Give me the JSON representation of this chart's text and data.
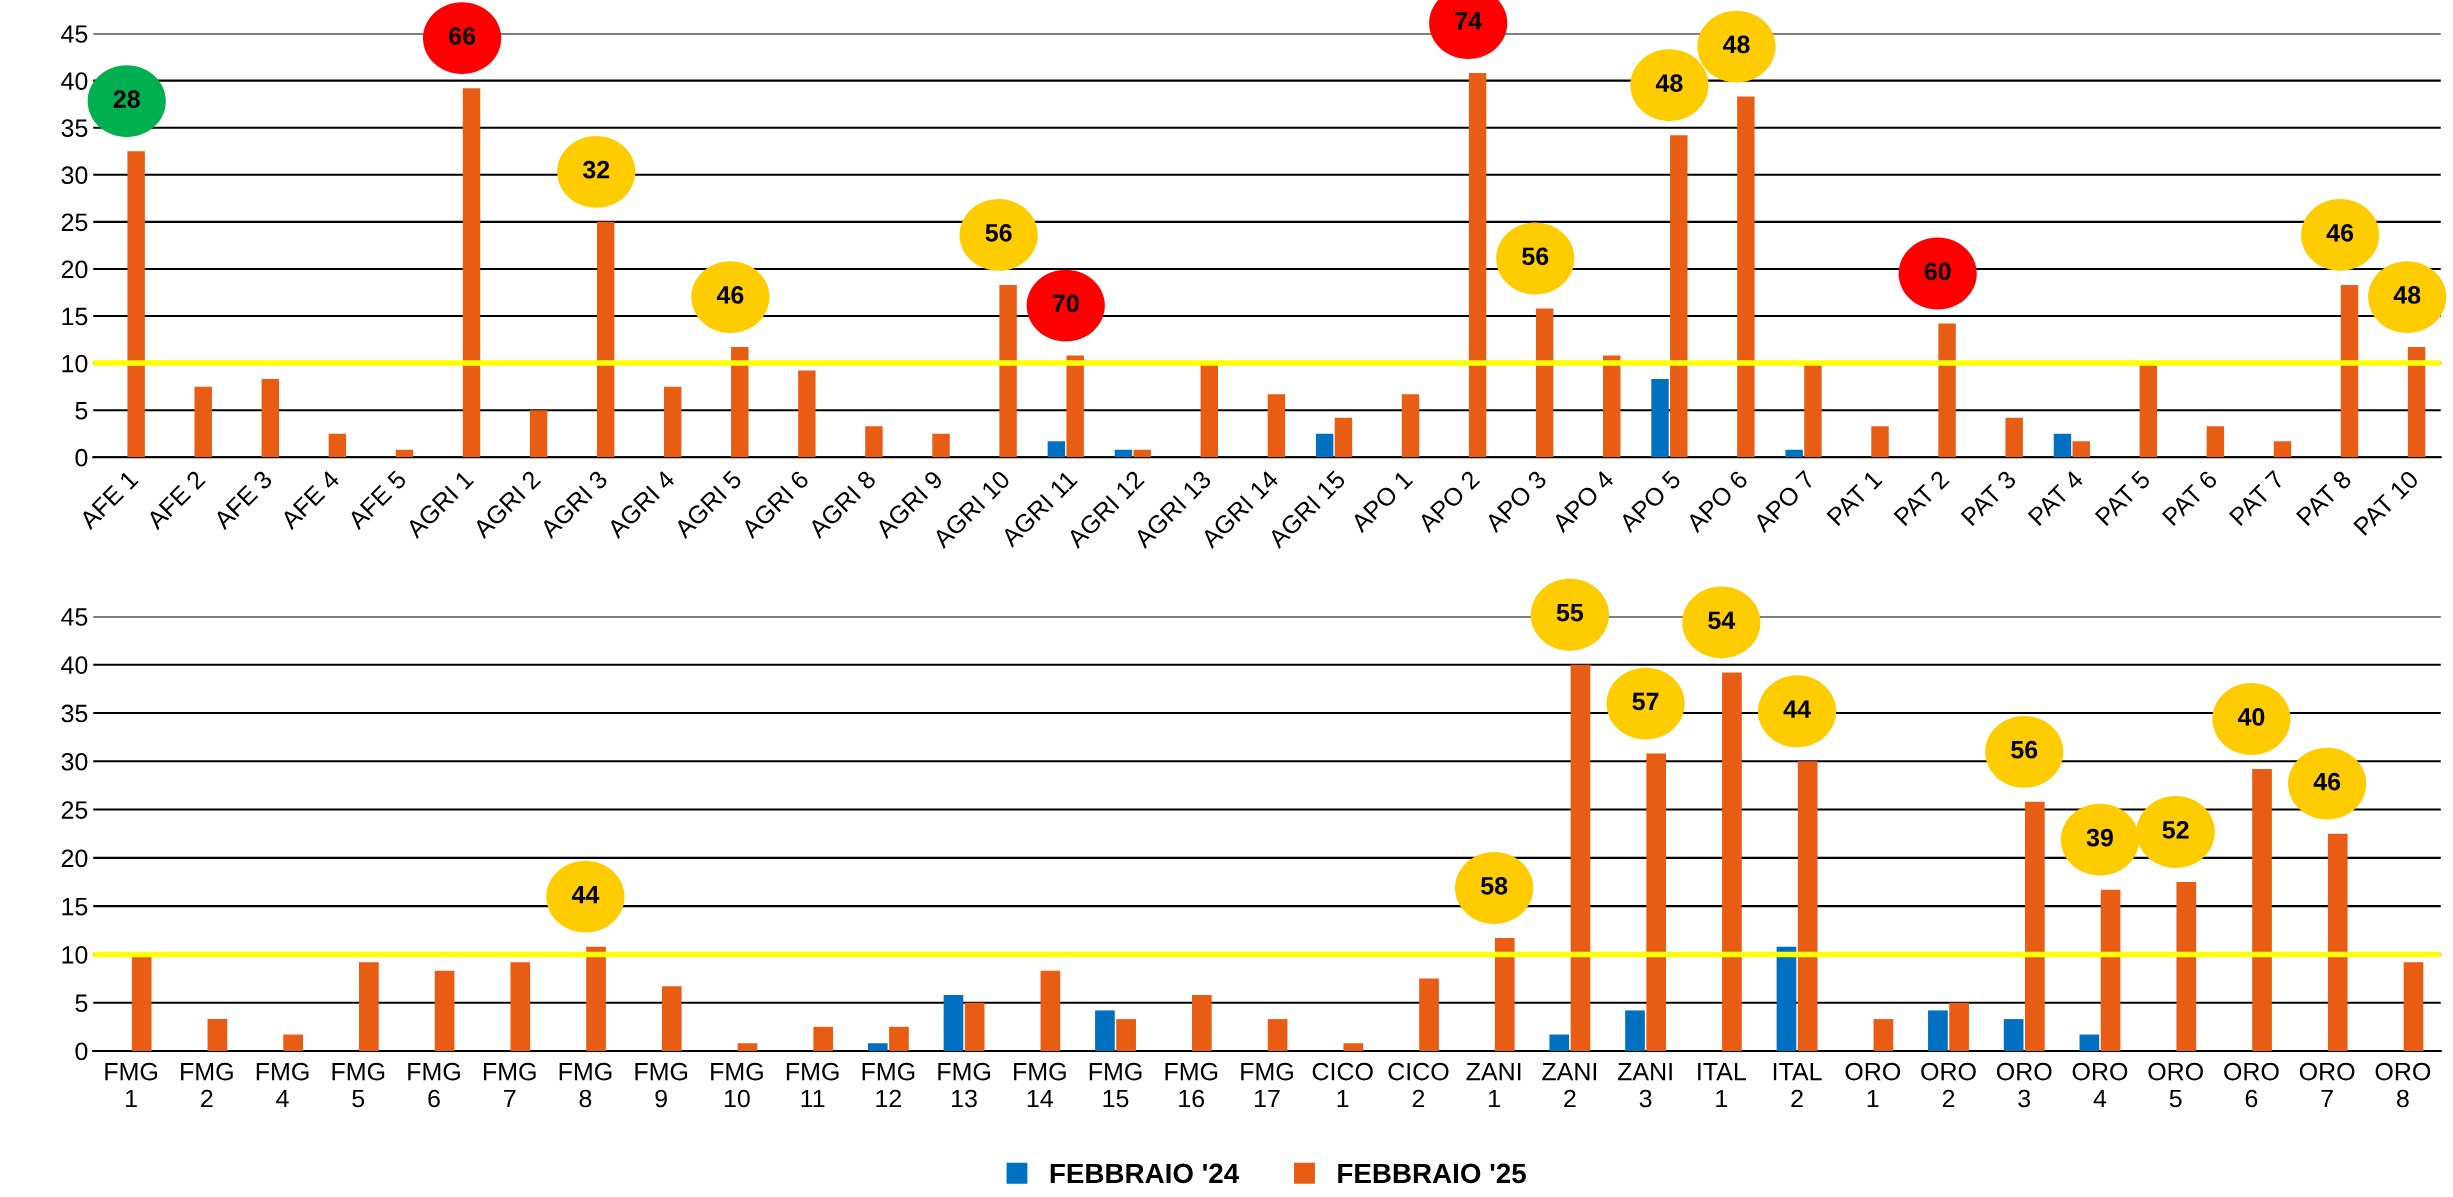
{
  "chart_data": [
    {
      "type": "bar",
      "categories": [
        "AFE 1",
        "AFE 2",
        "AFE 3",
        "AFE 4",
        "AFE 5",
        "AGRI 1",
        "AGRI 2",
        "AGRI 3",
        "AGRI 4",
        "AGRI 5",
        "AGRI 6",
        "AGRI 8",
        "AGRI 9",
        "AGRI 10",
        "AGRI 11",
        "AGRI 12",
        "AGRI 13",
        "AGRI 14",
        "AGRI 15",
        "APO 1",
        "APO 2",
        "APO 3",
        "APO 4",
        "APO 5",
        "APO 6",
        "APO 7",
        "PAT 1",
        "PAT 2",
        "PAT 3",
        "PAT 4",
        "PAT 5",
        "PAT 6",
        "PAT 7",
        "PAT 8",
        "PAT 10"
      ],
      "series": [
        {
          "color": "#0070c0",
          "values": [
            null,
            null,
            null,
            null,
            null,
            null,
            null,
            null,
            null,
            null,
            null,
            null,
            null,
            null,
            1.7,
            0.8,
            null,
            null,
            2.5,
            null,
            null,
            null,
            null,
            8.3,
            null,
            0.8,
            null,
            null,
            null,
            2.5,
            null,
            null,
            null,
            null,
            null
          ]
        },
        {
          "color": "#e85c14",
          "values": [
            32.5,
            7.5,
            8.3,
            2.5,
            0.8,
            39.2,
            5.0,
            25.0,
            7.5,
            11.7,
            9.2,
            3.3,
            2.5,
            18.3,
            10.8,
            0.8,
            10.0,
            6.7,
            4.2,
            6.7,
            40.8,
            15.8,
            10.8,
            34.2,
            38.3,
            10.0,
            3.3,
            14.2,
            4.2,
            1.7,
            10.0,
            3.3,
            1.7,
            18.3,
            11.7
          ]
        }
      ],
      "ylim": [
        0,
        45
      ],
      "yticks": [
        0,
        5,
        10,
        15,
        20,
        25,
        30,
        35,
        40,
        45
      ],
      "grid": "y",
      "ref_lines": [
        {
          "axis": "y",
          "value": 10,
          "color": "#ffff00"
        }
      ],
      "annotations": [
        {
          "text": "28",
          "x": "AFE 1",
          "y": 32.5
        },
        {
          "text": "66",
          "x": "AGRI 1",
          "y": 39.2
        },
        {
          "text": "32",
          "x": "AGRI 3",
          "y": 25.0
        },
        {
          "text": "46",
          "x": "AGRI 5",
          "y": 11.7
        },
        {
          "text": "56",
          "x": "AGRI 10",
          "y": 18.3
        },
        {
          "text": "70",
          "x": "AGRI 11",
          "y": 10.8
        },
        {
          "text": "74",
          "x": "APO 2",
          "y": 40.8
        },
        {
          "text": "56",
          "x": "APO 3",
          "y": 15.8
        },
        {
          "text": "48",
          "x": "APO 5",
          "y": 34.2
        },
        {
          "text": "48",
          "x": "APO 6",
          "y": 38.3
        },
        {
          "text": "60",
          "x": "PAT 2",
          "y": 14.2
        },
        {
          "text": "46",
          "x": "PAT 8",
          "y": 18.3
        },
        {
          "text": "48",
          "x": "PAT 10",
          "y": 11.7
        }
      ]
    },
    {
      "type": "bar",
      "categories": [
        "FMG 1",
        "FMG 2",
        "FMG 4",
        "FMG 5",
        "FMG 6",
        "FMG 7",
        "FMG 8",
        "FMG 9",
        "FMG 10",
        "FMG 11",
        "FMG 12",
        "FMG 13",
        "FMG 14",
        "FMG 15",
        "FMG 16",
        "FMG 17",
        "CICO 1",
        "CICO 2",
        "ZANI 1",
        "ZANI 2",
        "ZANI 3",
        "ITAL 1",
        "ITAL 2",
        "ORO 1",
        "ORO 2",
        "ORO 3",
        "ORO 4",
        "ORO 5",
        "ORO 6",
        "ORO 7",
        "ORO 8"
      ],
      "series": [
        {
          "name": "FEBBRAIO '24",
          "color": "#0070c0",
          "values": [
            null,
            null,
            null,
            null,
            null,
            null,
            null,
            null,
            null,
            null,
            0.8,
            5.8,
            null,
            4.2,
            null,
            null,
            null,
            null,
            null,
            1.7,
            4.2,
            null,
            10.8,
            null,
            4.2,
            3.3,
            1.7,
            null,
            null,
            null,
            null
          ]
        },
        {
          "name": "FEBBRAIO '25",
          "color": "#e85c14",
          "values": [
            10.0,
            3.3,
            1.7,
            9.2,
            8.3,
            9.2,
            10.8,
            6.7,
            0.8,
            2.5,
            2.5,
            5.0,
            8.3,
            3.3,
            5.8,
            3.3,
            0.8,
            7.5,
            11.7,
            40.0,
            30.8,
            39.2,
            30.0,
            3.3,
            5.0,
            25.8,
            16.7,
            17.5,
            29.2,
            22.5,
            9.2
          ]
        }
      ],
      "ylim": [
        0,
        45
      ],
      "yticks": [
        0,
        5,
        10,
        15,
        20,
        25,
        30,
        35,
        40,
        45
      ],
      "grid": "y",
      "legend": "bottom",
      "ref_lines": [
        {
          "axis": "y",
          "value": 10,
          "color": "#ffff00"
        }
      ],
      "annotations": [
        {
          "text": "44",
          "x": "FMG 8",
          "y": 10.8
        },
        {
          "text": "58",
          "x": "ZANI 1",
          "y": 11.7
        },
        {
          "text": "55",
          "x": "ZANI 2",
          "y": 40.0
        },
        {
          "text": "57",
          "x": "ZANI 3",
          "y": 30.8
        },
        {
          "text": "54",
          "x": "ITAL 1",
          "y": 39.2
        },
        {
          "text": "44",
          "x": "ITAL 2",
          "y": 30.0
        },
        {
          "text": "56",
          "x": "ORO 3",
          "y": 25.8
        },
        {
          "text": "39",
          "x": "ORO 4",
          "y": 16.7
        },
        {
          "text": "52",
          "x": "ORO 5",
          "y": 17.5
        },
        {
          "text": "40",
          "x": "ORO 6",
          "y": 29.2
        },
        {
          "text": "46",
          "x": "ORO 7",
          "y": 22.5
        }
      ]
    }
  ]
}
